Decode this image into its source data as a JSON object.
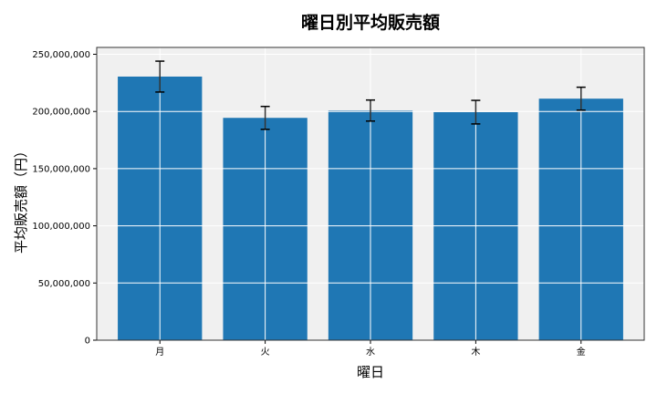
{
  "chart_data": {
    "type": "bar",
    "title": "曜日別平均販売額",
    "xlabel": "曜日",
    "ylabel": "平均販売額（円）",
    "categories": [
      "月",
      "火",
      "水",
      "木",
      "金"
    ],
    "values": [
      230500000,
      194400000,
      200800000,
      199400000,
      211200000
    ],
    "errors": [
      13500000,
      10000000,
      9200000,
      10300000,
      10000000
    ],
    "ylim": [
      0,
      256000000
    ],
    "yticks": [
      0,
      50000000,
      100000000,
      150000000,
      200000000,
      250000000
    ],
    "ytick_labels": [
      "0",
      "50,000,000",
      "100,000,000",
      "150,000,000",
      "200,000,000",
      "250,000,000"
    ],
    "grid": true,
    "colors": {
      "bar": "#1f77b4",
      "background": "#f0f0f0",
      "error": "#000000"
    }
  }
}
